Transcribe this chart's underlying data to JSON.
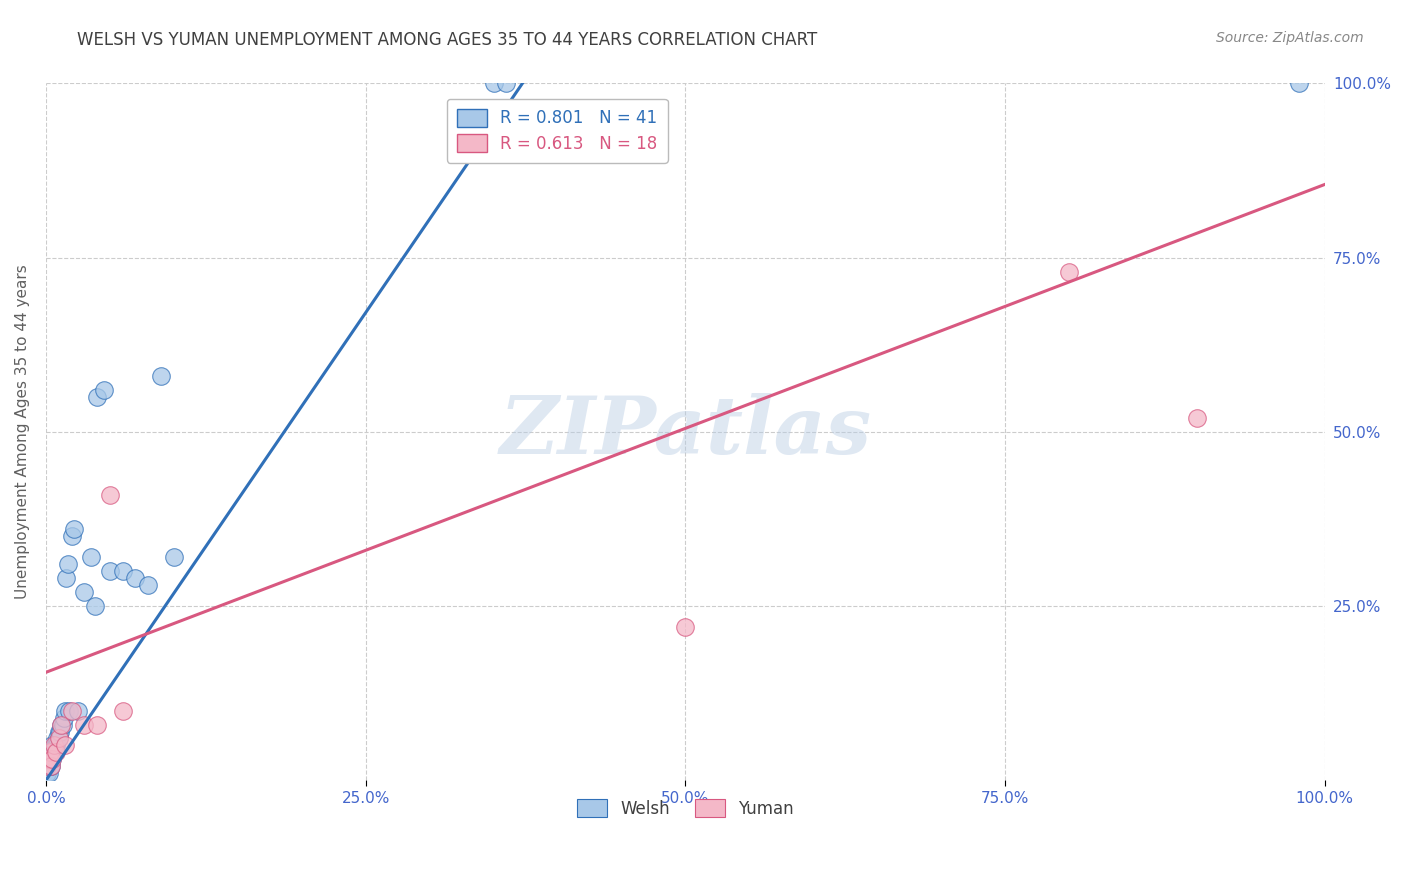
{
  "title": "WELSH VS YUMAN UNEMPLOYMENT AMONG AGES 35 TO 44 YEARS CORRELATION CHART",
  "source": "Source: ZipAtlas.com",
  "ylabel": "Unemployment Among Ages 35 to 44 years",
  "welsh_label": "Welsh",
  "yuman_label": "Yuman",
  "welsh_R": 0.801,
  "welsh_N": 41,
  "yuman_R": 0.613,
  "yuman_N": 18,
  "welsh_color": "#a8c8e8",
  "yuman_color": "#f4b8c8",
  "welsh_line_color": "#3070b8",
  "yuman_line_color": "#d85880",
  "watermark": "ZIPatlas",
  "welsh_x": [
    0.001,
    0.002,
    0.002,
    0.003,
    0.003,
    0.004,
    0.004,
    0.005,
    0.005,
    0.006,
    0.007,
    0.007,
    0.008,
    0.009,
    0.01,
    0.01,
    0.011,
    0.012,
    0.013,
    0.014,
    0.015,
    0.016,
    0.017,
    0.018,
    0.02,
    0.022,
    0.025,
    0.03,
    0.035,
    0.038,
    0.04,
    0.045,
    0.05,
    0.06,
    0.07,
    0.08,
    0.09,
    0.1,
    0.35,
    0.36,
    0.98
  ],
  "welsh_y": [
    0.01,
    0.01,
    0.02,
    0.02,
    0.03,
    0.02,
    0.04,
    0.03,
    0.05,
    0.04,
    0.04,
    0.05,
    0.05,
    0.06,
    0.06,
    0.07,
    0.07,
    0.08,
    0.08,
    0.09,
    0.1,
    0.29,
    0.31,
    0.1,
    0.35,
    0.36,
    0.1,
    0.27,
    0.32,
    0.25,
    0.55,
    0.56,
    0.3,
    0.3,
    0.29,
    0.28,
    0.58,
    0.32,
    1.0,
    1.0,
    1.0
  ],
  "yuman_x": [
    0.001,
    0.002,
    0.003,
    0.004,
    0.005,
    0.006,
    0.008,
    0.01,
    0.012,
    0.015,
    0.02,
    0.03,
    0.04,
    0.05,
    0.06,
    0.5,
    0.8,
    0.9
  ],
  "yuman_y": [
    0.02,
    0.03,
    0.04,
    0.02,
    0.03,
    0.05,
    0.04,
    0.06,
    0.08,
    0.05,
    0.1,
    0.08,
    0.08,
    0.41,
    0.1,
    0.22,
    0.73,
    0.52
  ],
  "welsh_line_x": [
    0.0,
    0.38
  ],
  "welsh_line_y": [
    0.0,
    1.02
  ],
  "yuman_line_x": [
    0.0,
    1.0
  ],
  "yuman_line_y": [
    0.155,
    0.855
  ],
  "xlim": [
    0.0,
    1.0
  ],
  "ylim": [
    0.0,
    1.0
  ],
  "xticks": [
    0.0,
    0.25,
    0.5,
    0.75,
    1.0
  ],
  "xtick_labels": [
    "0.0%",
    "25.0%",
    "50.0%",
    "75.0%",
    "100.0%"
  ],
  "ytick_positions": [
    0.25,
    0.5,
    0.75,
    1.0
  ],
  "ytick_labels": [
    "25.0%",
    "50.0%",
    "75.0%",
    "100.0%"
  ],
  "title_fontsize": 12,
  "axis_fontsize": 11,
  "tick_fontsize": 11,
  "legend_fontsize": 12,
  "source_fontsize": 10,
  "background_color": "#ffffff",
  "grid_color": "#cccccc",
  "title_color": "#404040",
  "tick_color": "#4466cc",
  "ylabel_color": "#606060"
}
